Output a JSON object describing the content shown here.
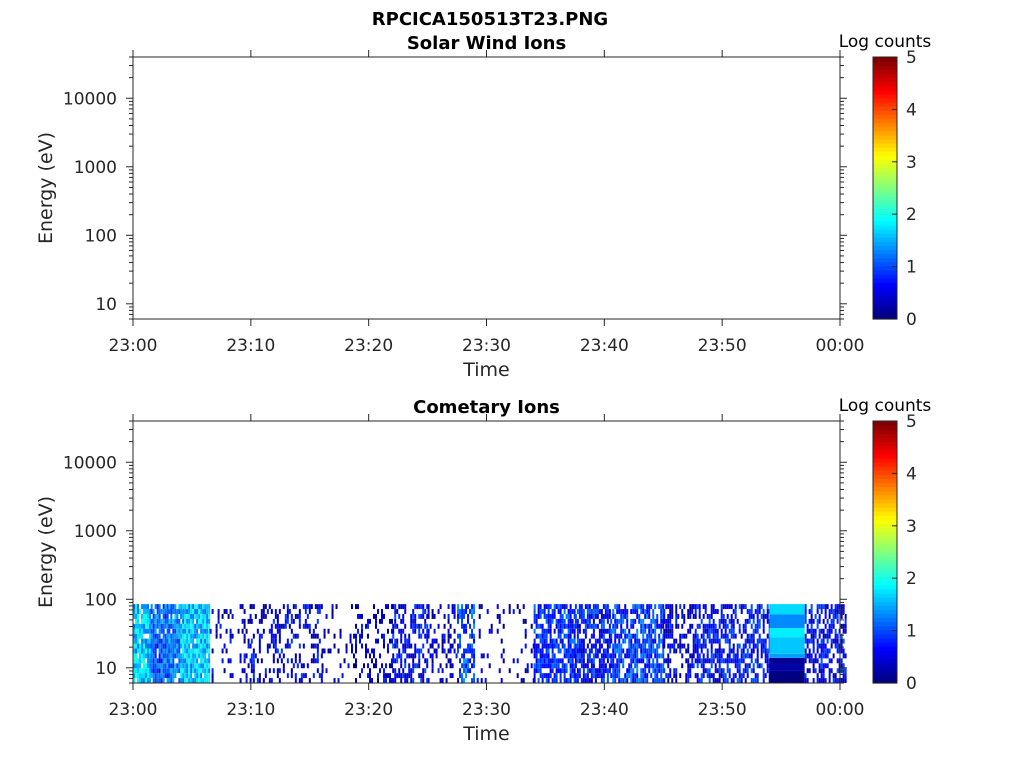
{
  "figure_title": "RPCICA150513T23.PNG",
  "chart_data": [
    {
      "type": "heatmap",
      "title": "Solar Wind Ions",
      "xlabel": "Time",
      "ylabel": "Energy (eV)",
      "x_tick_labels": [
        "23:00",
        "23:10",
        "23:20",
        "23:30",
        "23:40",
        "23:50",
        "00:00"
      ],
      "xlim": [
        "23:00",
        "00:00"
      ],
      "y_scale": "log",
      "y_tick_labels": [
        "10",
        "100",
        "1000",
        "10000"
      ],
      "y_ticks": [
        10,
        100,
        1000,
        10000
      ],
      "ylim": [
        6,
        40000
      ],
      "colorbar": {
        "label": "Log counts",
        "ticks": [
          "0",
          "1",
          "2",
          "3",
          "4",
          "5"
        ],
        "range": [
          0,
          5
        ],
        "colormap": "jet"
      },
      "data_description": "no counts (empty)",
      "columns": []
    },
    {
      "type": "heatmap",
      "title": "Cometary Ions",
      "xlabel": "Time",
      "ylabel": "Energy (eV)",
      "x_tick_labels": [
        "23:00",
        "23:10",
        "23:20",
        "23:30",
        "23:40",
        "23:50",
        "00:00"
      ],
      "xlim": [
        "23:00",
        "00:00"
      ],
      "y_scale": "log",
      "y_tick_labels": [
        "10",
        "100",
        "1000",
        "10000"
      ],
      "y_ticks": [
        10,
        100,
        1000,
        10000
      ],
      "ylim": [
        6,
        40000
      ],
      "colorbar": {
        "label": "Log counts",
        "ticks": [
          "0",
          "1",
          "2",
          "3",
          "4",
          "5"
        ],
        "range": [
          0,
          5
        ],
        "colormap": "jet"
      },
      "energy_max_eV": 85,
      "columns": [
        {
          "t_start": 0.0,
          "t_end": 1.5,
          "density": 0.95,
          "level": 1.6
        },
        {
          "t_start": 1.5,
          "t_end": 3.0,
          "density": 0.9,
          "level": 1.1
        },
        {
          "t_start": 3.0,
          "t_end": 4.0,
          "density": 0.85,
          "level": 1.3
        },
        {
          "t_start": 4.0,
          "t_end": 6.5,
          "density": 0.95,
          "level": 1.6
        },
        {
          "t_start": 6.5,
          "t_end": 10.0,
          "density": 0.2,
          "level": 0.4
        },
        {
          "t_start": 10.0,
          "t_end": 16.0,
          "density": 0.35,
          "level": 0.5
        },
        {
          "t_start": 16.0,
          "t_end": 18.5,
          "density": 0.1,
          "level": 0.3
        },
        {
          "t_start": 18.5,
          "t_end": 22.0,
          "density": 0.3,
          "level": 0.4
        },
        {
          "t_start": 22.0,
          "t_end": 25.0,
          "density": 0.5,
          "level": 0.6
        },
        {
          "t_start": 25.0,
          "t_end": 27.5,
          "density": 0.25,
          "level": 0.4
        },
        {
          "t_start": 27.5,
          "t_end": 29.0,
          "density": 0.55,
          "level": 1.0
        },
        {
          "t_start": 29.0,
          "t_end": 34.0,
          "density": 0.12,
          "level": 0.3
        },
        {
          "t_start": 34.0,
          "t_end": 37.5,
          "density": 0.75,
          "level": 0.8
        },
        {
          "t_start": 37.5,
          "t_end": 40.5,
          "density": 0.7,
          "level": 0.7
        },
        {
          "t_start": 40.5,
          "t_end": 45.0,
          "density": 0.7,
          "level": 0.9
        },
        {
          "t_start": 45.0,
          "t_end": 47.5,
          "density": 0.4,
          "level": 0.5
        },
        {
          "t_start": 47.5,
          "t_end": 54.0,
          "density": 0.6,
          "level": 0.7
        },
        {
          "t_start": 57.0,
          "t_end": 60.5,
          "density": 0.6,
          "level": 0.6
        }
      ],
      "bands": [
        {
          "t_start": 54.0,
          "t_end": 57.0,
          "e_min": 6,
          "e_max": 9,
          "level": 0.0
        },
        {
          "t_start": 54.0,
          "t_end": 57.0,
          "e_min": 9,
          "e_max": 11,
          "level": 0.2
        },
        {
          "t_start": 54.0,
          "t_end": 57.0,
          "e_min": 11,
          "e_max": 14,
          "level": 0.1
        },
        {
          "t_start": 54.0,
          "t_end": 57.0,
          "e_min": 14,
          "e_max": 16,
          "level": 1.4
        },
        {
          "t_start": 54.0,
          "t_end": 57.0,
          "e_min": 16,
          "e_max": 28,
          "level": 1.6
        },
        {
          "t_start": 54.0,
          "t_end": 57.0,
          "e_min": 28,
          "e_max": 38,
          "level": 1.8
        },
        {
          "t_start": 54.0,
          "t_end": 57.0,
          "e_min": 38,
          "e_max": 60,
          "level": 1.3
        },
        {
          "t_start": 54.0,
          "t_end": 57.0,
          "e_min": 60,
          "e_max": 85,
          "level": 1.7
        }
      ]
    }
  ]
}
